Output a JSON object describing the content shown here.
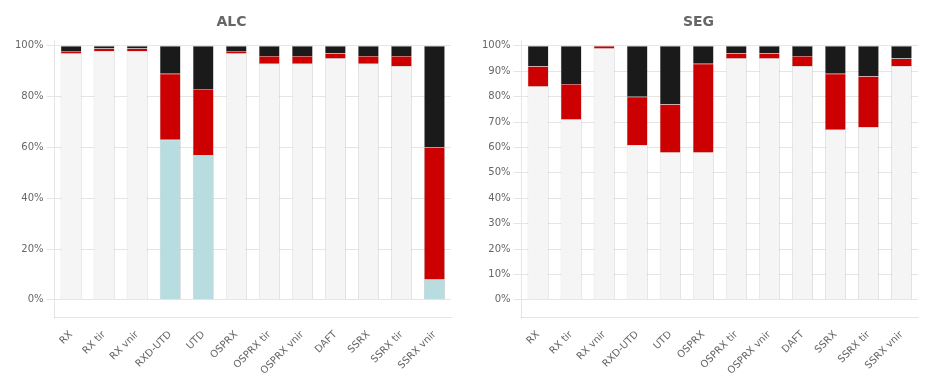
{
  "chart_data": [
    {
      "type": "bar",
      "title": "ALC",
      "stacked": true,
      "grid": true,
      "categories": [
        "RX",
        "RX tir",
        "RX vnir",
        "RXD-UTD",
        "UTD",
        "OSPRX",
        "OSPRX tir",
        "OSPRX vnir",
        "DAFT",
        "SSRX",
        "SSRX tir",
        "SSRX vnir"
      ],
      "series": [
        {
          "color": "#b8dde0",
          "values": [
            0,
            0,
            0,
            0,
            0,
            0,
            0,
            0,
            0,
            0,
            0,
            7
          ]
        },
        {
          "colors": [
            "#f5f5f5",
            "#f5f5f5",
            "#f5f5f5",
            "#b8dde0",
            "#b8dde0",
            "#f5f5f5",
            "#f5f5f5",
            "#f5f5f5",
            "#f5f5f5",
            "#f5f5f5",
            "#f5f5f5",
            "#b8dde0"
          ],
          "values": [
            97,
            98,
            98,
            63,
            57,
            97,
            93,
            93,
            95,
            93,
            92,
            1
          ]
        },
        {
          "color": "#cc0000",
          "values": [
            1,
            1,
            1,
            26,
            26,
            1,
            3,
            3,
            2,
            3,
            4,
            52
          ]
        },
        {
          "color": "#1a1a1a",
          "values": [
            2,
            1,
            1,
            11,
            17,
            2,
            4,
            4,
            3,
            4,
            4,
            40
          ]
        }
      ],
      "ylim": [
        -7,
        102
      ],
      "yticks": [
        {
          "value": 0,
          "label": "0%"
        },
        {
          "value": 20,
          "label": "20%"
        },
        {
          "value": 40,
          "label": "40%"
        },
        {
          "value": 60,
          "label": "60%"
        },
        {
          "value": 80,
          "label": "80%"
        },
        {
          "value": 100,
          "label": "100%"
        }
      ]
    },
    {
      "type": "bar",
      "title": "SEG",
      "stacked": true,
      "grid": true,
      "categories": [
        "RX",
        "RX tir",
        "RX vnir",
        "RXD-UTD",
        "UTD",
        "OSPRX",
        "OSPRX tir",
        "OSPRX vnir",
        "DAFT",
        "SSRX",
        "SSRX tir",
        "SSRX vnir"
      ],
      "series": [
        {
          "color": "#f5f5f5",
          "values": [
            84,
            71,
            99,
            61,
            58,
            58,
            95,
            95,
            92,
            67,
            68,
            92
          ]
        },
        {
          "color": "#cc0000",
          "values": [
            8,
            14,
            1,
            19,
            19,
            35,
            2,
            2,
            4,
            22,
            20,
            3
          ]
        },
        {
          "color": "#1a1a1a",
          "values": [
            8,
            15,
            0,
            20,
            23,
            7,
            3,
            3,
            4,
            11,
            12,
            5
          ]
        }
      ],
      "ylim": [
        -7,
        102
      ],
      "yticks": [
        {
          "value": 0,
          "label": "0%"
        },
        {
          "value": 10,
          "label": "10%"
        },
        {
          "value": 20,
          "label": "20%"
        },
        {
          "value": 30,
          "label": "30%"
        },
        {
          "value": 40,
          "label": "40%"
        },
        {
          "value": 50,
          "label": "50%"
        },
        {
          "value": 60,
          "label": "60%"
        },
        {
          "value": 70,
          "label": "70%"
        },
        {
          "value": 80,
          "label": "80%"
        },
        {
          "value": 90,
          "label": "90%"
        },
        {
          "value": 100,
          "label": "100%"
        }
      ]
    }
  ]
}
